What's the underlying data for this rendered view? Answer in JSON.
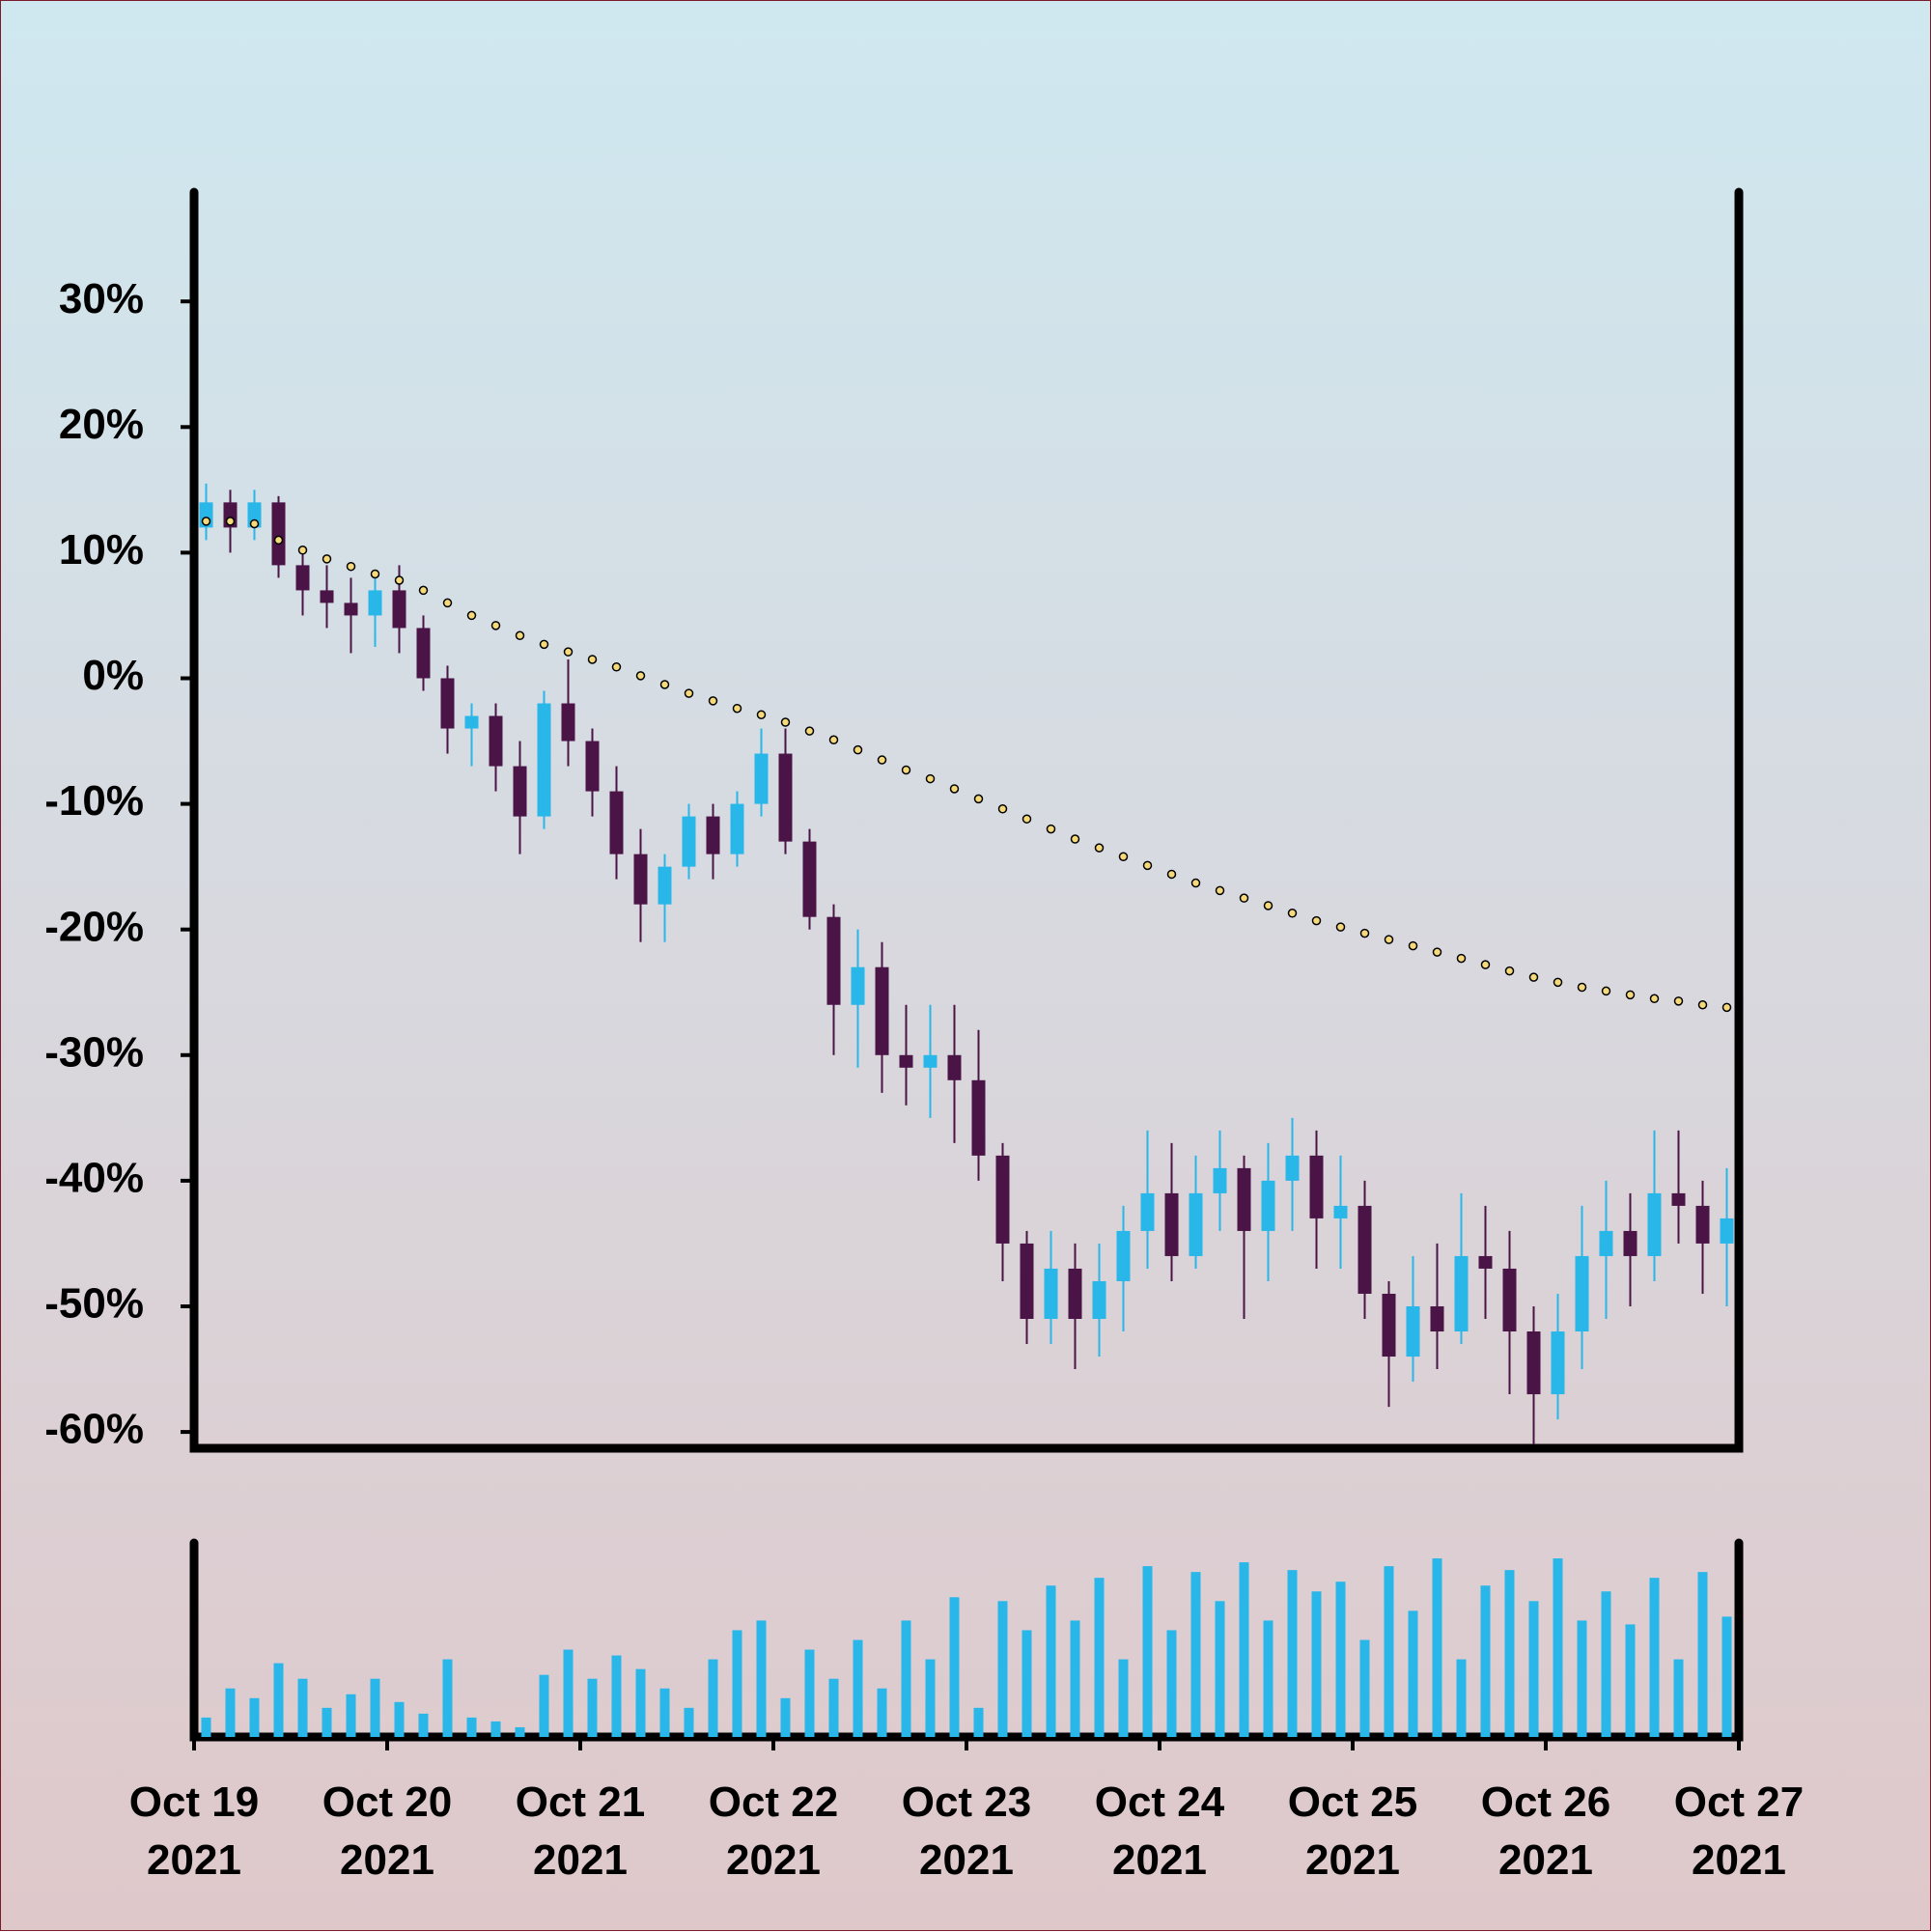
{
  "chart_data": {
    "type": "candlestick",
    "xlim": [
      0,
      64
    ],
    "xticks": [
      {
        "value": 0,
        "label": "Oct 19\n2021"
      },
      {
        "value": 8,
        "label": "Oct 20\n2021"
      },
      {
        "value": 16,
        "label": "Oct 21\n2021"
      },
      {
        "value": 24,
        "label": "Oct 22\n2021"
      },
      {
        "value": 32,
        "label": "Oct 23\n2021"
      },
      {
        "value": 40,
        "label": "Oct 24\n2021"
      },
      {
        "value": 48,
        "label": "Oct 25\n2021"
      },
      {
        "value": 56,
        "label": "Oct 26\n2021"
      },
      {
        "value": 64,
        "label": "Oct 27\n2021"
      }
    ],
    "ylim": [
      -61.3,
      38.7
    ],
    "yticks": [
      {
        "value": -60,
        "label": "-60%"
      },
      {
        "value": -50,
        "label": "-50%"
      },
      {
        "value": -40,
        "label": "-40%"
      },
      {
        "value": -30,
        "label": "-30%"
      },
      {
        "value": -20,
        "label": "-20%"
      },
      {
        "value": -10,
        "label": "-10%"
      },
      {
        "value": 0,
        "label": "0%"
      },
      {
        "value": 10,
        "label": "10%"
      },
      {
        "value": 20,
        "label": "20%"
      },
      {
        "value": 30,
        "label": "30%"
      }
    ],
    "up_color": "#29b6e8",
    "down_color": "#4a1446",
    "open": [
      12,
      14,
      12,
      14,
      9,
      7,
      6,
      5,
      7,
      4,
      0,
      -4,
      -3,
      -7,
      -11,
      -2,
      -5,
      -9,
      -14,
      -18,
      -15,
      -11,
      -14,
      -10,
      -6,
      -13,
      -19,
      -26,
      -23,
      -30,
      -31,
      -30,
      -32,
      -38,
      -45,
      -51,
      -47,
      -51,
      -48,
      -44,
      -41,
      -46,
      -41,
      -39,
      -44,
      -40,
      -38,
      -43,
      -42,
      -49,
      -54,
      -50,
      -52,
      -46,
      -47,
      -52,
      -57,
      -52,
      -46,
      -44,
      -46,
      -41,
      -42,
      -45
    ],
    "high": [
      15.5,
      15,
      15,
      14.5,
      10,
      9,
      8,
      8.5,
      9,
      5,
      1,
      -2,
      -2,
      -5,
      -1,
      1.5,
      -4,
      -7,
      -12,
      -14,
      -10,
      -10,
      -9,
      -4,
      -4,
      -12,
      -18,
      -20,
      -21,
      -26,
      -26,
      -26,
      -28,
      -37,
      -44,
      -44,
      -45,
      -45,
      -42,
      -36,
      -37,
      -38,
      -36,
      -38,
      -37,
      -35,
      -36,
      -38,
      -40,
      -48,
      -46,
      -45,
      -41,
      -42,
      -44,
      -50,
      -49,
      -42,
      -40,
      -41,
      -36,
      -36,
      -40,
      -39
    ],
    "low": [
      11,
      10,
      11,
      8,
      5,
      4,
      2,
      2.5,
      2,
      -1,
      -6,
      -7,
      -9,
      -14,
      -12,
      -7,
      -11,
      -16,
      -21,
      -21,
      -16,
      -16,
      -15,
      -11,
      -14,
      -20,
      -30,
      -31,
      -33,
      -34,
      -35,
      -37,
      -40,
      -48,
      -53,
      -53,
      -55,
      -54,
      -52,
      -47,
      -48,
      -47,
      -44,
      -51,
      -48,
      -44,
      -47,
      -47,
      -51,
      -58,
      -56,
      -55,
      -53,
      -51,
      -57,
      -61,
      -59,
      -55,
      -51,
      -50,
      -48,
      -45,
      -49,
      -50
    ],
    "close": [
      14,
      12,
      14,
      9,
      7,
      6,
      5,
      7,
      4,
      0,
      -4,
      -3,
      -7,
      -11,
      -2,
      -5,
      -9,
      -14,
      -18,
      -15,
      -11,
      -14,
      -10,
      -6,
      -13,
      -19,
      -26,
      -23,
      -30,
      -31,
      -30,
      -32,
      -38,
      -45,
      -51,
      -47,
      -51,
      -48,
      -44,
      -41,
      -46,
      -41,
      -39,
      -44,
      -40,
      -38,
      -43,
      -42,
      -49,
      -54,
      -50,
      -52,
      -46,
      -47,
      -52,
      -57,
      -52,
      -46,
      -44,
      -46,
      -41,
      -42,
      -45,
      -43
    ],
    "moving_average": {
      "color": "#f5d97a",
      "values": [
        12.5,
        12.5,
        12.3,
        11,
        10.2,
        9.5,
        8.9,
        8.3,
        7.8,
        7,
        6,
        5,
        4.2,
        3.4,
        2.7,
        2.1,
        1.5,
        0.9,
        0.2,
        -0.5,
        -1.2,
        -1.8,
        -2.4,
        -2.9,
        -3.5,
        -4.2,
        -4.9,
        -5.7,
        -6.5,
        -7.3,
        -8,
        -8.8,
        -9.6,
        -10.4,
        -11.2,
        -12,
        -12.8,
        -13.5,
        -14.2,
        -14.9,
        -15.6,
        -16.3,
        -16.9,
        -17.5,
        -18.1,
        -18.7,
        -19.3,
        -19.8,
        -20.3,
        -20.8,
        -21.3,
        -21.8,
        -22.3,
        -22.8,
        -23.3,
        -23.8,
        -24.2,
        -24.6,
        -24.9,
        -25.2,
        -25.5,
        -25.7,
        -26,
        -26.2
      ]
    },
    "volume": {
      "color": "#29b6e8",
      "ylim": [
        0,
        100
      ],
      "values": [
        10,
        25,
        20,
        38,
        30,
        15,
        22,
        30,
        18,
        12,
        40,
        10,
        8,
        5,
        32,
        45,
        30,
        42,
        35,
        25,
        15,
        40,
        55,
        60,
        20,
        45,
        30,
        50,
        25,
        60,
        40,
        72,
        15,
        70,
        55,
        78,
        60,
        82,
        40,
        88,
        55,
        85,
        70,
        90,
        60,
        86,
        75,
        80,
        50,
        88,
        65,
        92,
        40,
        78,
        86,
        70,
        92,
        60,
        75,
        58,
        82,
        40,
        85,
        62
      ]
    }
  }
}
